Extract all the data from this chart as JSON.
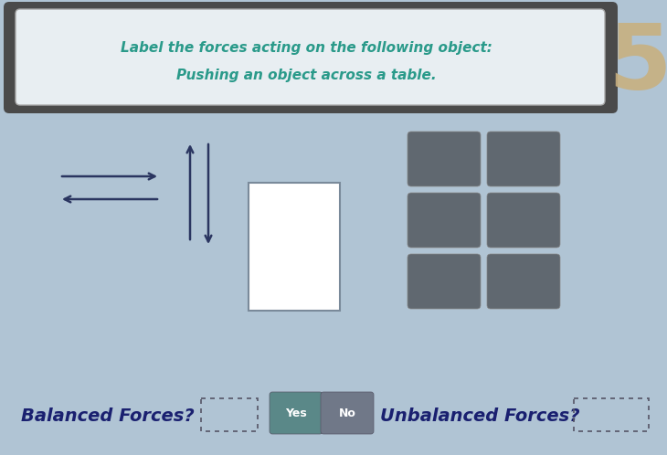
{
  "bg_color": "#b0c4d4",
  "title_outer_bg": "#4a4a4a",
  "title_inner_bg": "#e8eef2",
  "title_line1": "Label the forces acting on the following object:",
  "title_line2": "Pushing an object across a table.",
  "title_color": "#2a9a8a",
  "number_5_color": "#c8b080",
  "arrow_color": "#2a3560",
  "object_box_color": "#ffffff",
  "object_box_edge": "#7a8a9a",
  "label_btn_color": "#606870",
  "label_btn_edge": "#888888",
  "balanced_text": "Balanced Forces?",
  "balanced_text_color": "#1a2070",
  "unbalanced_text": "Unbalanced Forces?",
  "unbalanced_text_color": "#1a2070",
  "yes_btn_color": "#5a8888",
  "no_btn_color": "#707888",
  "yes_text": "Yes",
  "no_text": "No",
  "btn_text_color": "#ffffff"
}
